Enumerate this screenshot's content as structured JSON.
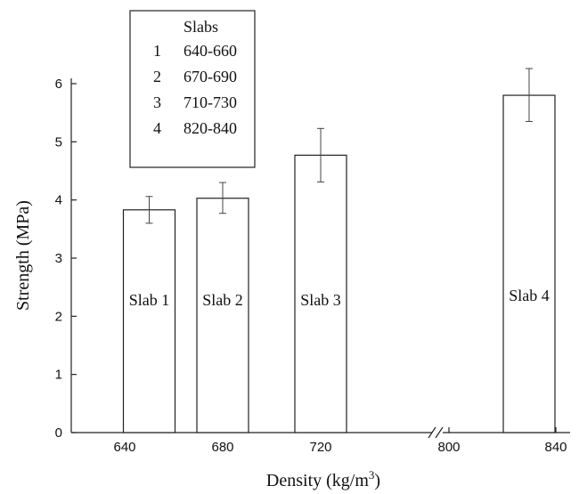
{
  "chart_data": {
    "type": "bar",
    "xlabel": "Density (kg/m",
    "xlabel_sup": "3",
    "xlabel_end": ")",
    "ylabel": "Strength (MPa)",
    "ylim": [
      0,
      6.3
    ],
    "yticks": [
      "0",
      "1",
      "2",
      "3",
      "4",
      "5",
      "6"
    ],
    "xticks": [
      "640",
      "680",
      "720",
      "800",
      "840"
    ],
    "axis_break_at": "800",
    "grid": false,
    "bars": [
      {
        "label": "Slab 1",
        "x": 650,
        "value": 3.83,
        "err_low": 3.6,
        "err_high": 4.06
      },
      {
        "label": "Slab 2",
        "x": 680,
        "value": 4.03,
        "err_low": 3.77,
        "err_high": 4.3
      },
      {
        "label": "Slab 3",
        "x": 720,
        "value": 4.77,
        "err_low": 4.31,
        "err_high": 5.23
      },
      {
        "label": "Slab 4",
        "x": 830,
        "value": 5.8,
        "err_low": 5.35,
        "err_high": 6.26
      }
    ],
    "legend": {
      "title": "Slabs",
      "placement": "top-left",
      "items": [
        {
          "id": "1",
          "range": "640-660"
        },
        {
          "id": "2",
          "range": "670-690"
        },
        {
          "id": "3",
          "range": "710-730"
        },
        {
          "id": "4",
          "range": "820-840"
        }
      ]
    }
  }
}
